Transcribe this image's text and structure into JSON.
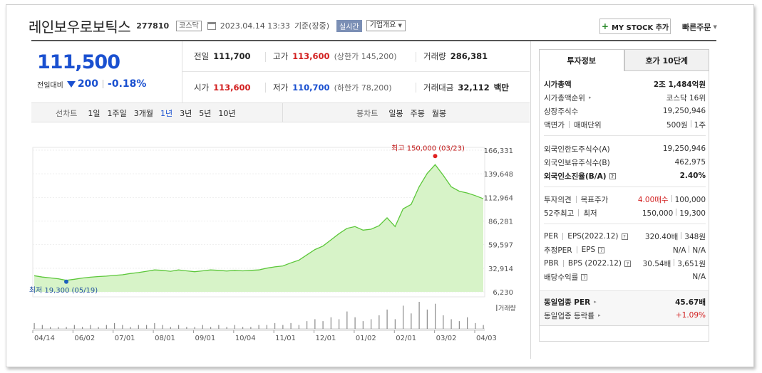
{
  "header": {
    "stock_name": "레인보우로보틱스",
    "stock_code": "277810",
    "market_badge": "코스닥",
    "datetime": "2023.04.14 13:33",
    "basis": "기준(장중)",
    "realtime_label": "실시간",
    "corp_overview_label": "기업개요",
    "mystock_label": "MY STOCK 추가",
    "quick_order_label": "빠른주문"
  },
  "quote": {
    "price": "111,500",
    "change_label": "전일대비",
    "change_value": "200",
    "change_pct": "-0.18%"
  },
  "summary": {
    "prev_label": "전일",
    "prev_value": "111,700",
    "high_label": "고가",
    "high_value": "113,600",
    "upper_limit": "(상한가 145,200)",
    "volume_label": "거래량",
    "volume_value": "286,381",
    "open_label": "시가",
    "open_value": "113,600",
    "low_label": "저가",
    "low_value": "110,700",
    "lower_limit": "(하한가 78,200)",
    "amount_label": "거래대금",
    "amount_value": "32,112",
    "amount_unit": "백만"
  },
  "chart_tabs": {
    "line_label": "선차트",
    "line_items": [
      "1일",
      "1주일",
      "3개월",
      "1년",
      "3년",
      "5년",
      "10년"
    ],
    "selected_line": "1년",
    "candle_label": "봉차트",
    "candle_items": [
      "일봉",
      "주봉",
      "월봉"
    ]
  },
  "chart_data": {
    "type": "area",
    "y_ticks": [
      "166,331",
      "139,648",
      "112,964",
      "86,281",
      "59,597",
      "32,914",
      "6,230"
    ],
    "ylim": [
      6230,
      166331
    ],
    "x_ticks": [
      "04/14",
      "06/02",
      "07/01",
      "08/01",
      "09/01",
      "10/04",
      "11/01",
      "12/01",
      "01/02",
      "02/01",
      "03/02",
      "04/03"
    ],
    "high_annotation": "최고 150,000 (03/23)",
    "low_annotation": "최저 19,300 (05/19)",
    "volume_label": "거래량",
    "line_color": "#5cc73a",
    "fill_color": "#d7f3c8",
    "price_series": [
      24500,
      23000,
      22000,
      21000,
      19300,
      20500,
      21800,
      22800,
      23500,
      24000,
      24800,
      25500,
      27000,
      28000,
      29500,
      31000,
      30500,
      29500,
      31000,
      30000,
      29000,
      30000,
      31000,
      30500,
      29800,
      30500,
      30000,
      30500,
      31000,
      33000,
      34500,
      35500,
      39000,
      42000,
      48000,
      54000,
      58000,
      65000,
      72000,
      78000,
      80000,
      76000,
      77000,
      81000,
      90000,
      80000,
      100000,
      105000,
      125000,
      140000,
      150000,
      138000,
      125000,
      120000,
      118000,
      115000,
      111500
    ],
    "volume_series": [
      3,
      2,
      1,
      1,
      1,
      2,
      1,
      2,
      1,
      2,
      3,
      2,
      1,
      2,
      2,
      3,
      2,
      1,
      2,
      1,
      1,
      2,
      1,
      2,
      1,
      2,
      1,
      1,
      2,
      2,
      3,
      2,
      3,
      2,
      4,
      5,
      4,
      6,
      5,
      9,
      6,
      4,
      5,
      7,
      10,
      5,
      12,
      8,
      14,
      10,
      13,
      7,
      5,
      4,
      6,
      3,
      2
    ]
  },
  "side": {
    "tab_invest": "투자정보",
    "tab_quote10": "호가 10단계",
    "rows": {
      "market_cap_label": "시가총액",
      "market_cap_value": "2조 1,484억원",
      "market_cap_rank_label": "시가총액순위",
      "market_cap_rank_value": "코스닥 16위",
      "shares_label": "상장주식수",
      "shares_value": "19,250,946",
      "face_label": "액면가",
      "trade_unit_label": "매매단위",
      "face_value": "500원",
      "trade_unit_value": "1주",
      "foreign_limit_label": "외국인한도주식수(A)",
      "foreign_limit_value": "19,250,946",
      "foreign_hold_label": "외국인보유주식수(B)",
      "foreign_hold_value": "462,975",
      "foreign_ratio_label": "외국인소진율(B/A)",
      "foreign_ratio_value": "2.40%",
      "opinion_label": "투자의견",
      "target_label": "목표주가",
      "opinion_value": "4.00매수",
      "target_value": "100,000",
      "w52_high_label": "52주최고",
      "w52_low_label": "최저",
      "w52_high_value": "150,000",
      "w52_low_value": "19,300",
      "per_label": "PER",
      "eps_label": "EPS(2022.12)",
      "per_value": "320.40배",
      "eps_value": "348원",
      "est_per_label": "추정PER",
      "est_eps_label": "EPS",
      "est_per_value": "N/A",
      "est_eps_value": "N/A",
      "pbr_label": "PBR",
      "bps_label": "BPS (2022.12)",
      "pbr_value": "30.54배",
      "bps_value": "3,651원",
      "div_label": "배당수익률",
      "div_value": "N/A",
      "industry_per_label": "동일업종 PER",
      "industry_per_value": "45.67배",
      "industry_rate_label": "동일업종 등락률",
      "industry_rate_value": "+1.09%"
    }
  }
}
